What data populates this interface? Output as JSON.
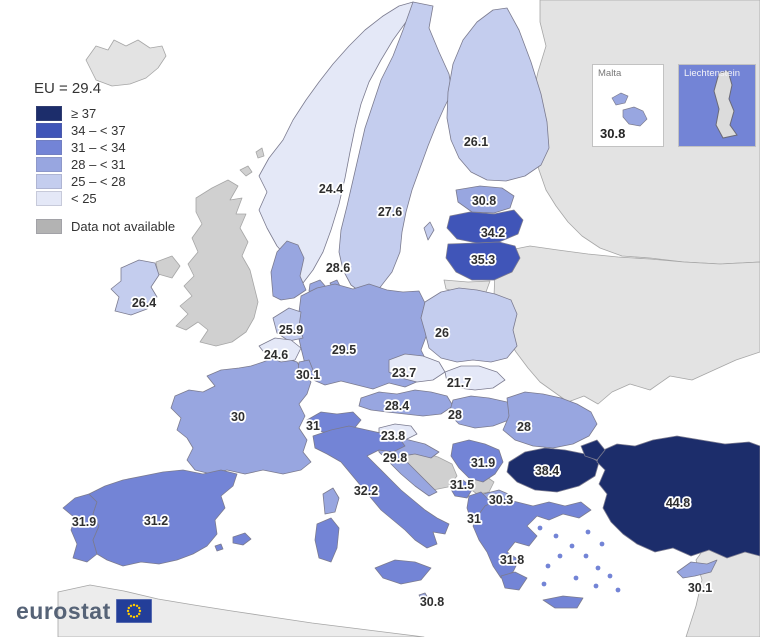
{
  "title": "EU = 29.4",
  "legend": {
    "classes": [
      {
        "id": "c0",
        "label": "≥ 37",
        "color": "#1c2d6b"
      },
      {
        "id": "c1",
        "label": "34 – < 37",
        "color": "#4055b8"
      },
      {
        "id": "c2",
        "label": "31 – < 34",
        "color": "#7384d6"
      },
      {
        "id": "c3",
        "label": "28 – < 31",
        "color": "#98a6e0"
      },
      {
        "id": "c4",
        "label": "25 – < 28",
        "color": "#c4cdee"
      },
      {
        "id": "c5",
        "label": "< 25",
        "color": "#e4e8f7"
      }
    ],
    "no_data": {
      "label": "Data not available",
      "color": "#b3b3b3"
    }
  },
  "map": {
    "extra_colors": {
      "na_light": "#e3e3e3",
      "na_mid": "#d0d0d0",
      "na_faint": "#ececec"
    },
    "countries": [
      {
        "id": "russia",
        "name": "Russia",
        "value": null,
        "cls": "na_light",
        "shape": "russia"
      },
      {
        "id": "east-block",
        "name": "Belarus / Ukraine / Moldova",
        "value": null,
        "cls": "na_light",
        "shape": "east_block"
      },
      {
        "id": "north-africa",
        "name": "North Africa coast",
        "value": null,
        "cls": "na_faint",
        "shape": "africa"
      },
      {
        "id": "middle-east",
        "name": "Syria / Middle East",
        "value": null,
        "cls": "na_light",
        "shape": "mideast"
      },
      {
        "id": "iceland",
        "name": "Iceland",
        "value": null,
        "cls": "na_light",
        "shape": "iceland"
      },
      {
        "id": "kaliningrad",
        "name": "Kaliningrad",
        "value": null,
        "cls": "na_light",
        "shape": "kaliningrad"
      },
      {
        "id": "united-kingdom",
        "name": "United Kingdom",
        "value": null,
        "cls": "na_mid",
        "shape": "uk"
      },
      {
        "id": "bosnia",
        "name": "Bosnia and Herzegovina",
        "value": null,
        "cls": "na_mid",
        "shape": "bosnia"
      },
      {
        "id": "kosovo",
        "name": "Kosovo",
        "value": null,
        "cls": "na_mid",
        "shape": "kosovo"
      },
      {
        "id": "norway",
        "name": "Norway",
        "value": "24.4",
        "cls": "c5",
        "shape": "norway",
        "label": [
          331,
          189
        ]
      },
      {
        "id": "sweden",
        "name": "Sweden",
        "value": "27.6",
        "cls": "c4",
        "shape": "sweden",
        "label": [
          390,
          212
        ]
      },
      {
        "id": "gotland",
        "name": "Gotland",
        "value": null,
        "cls": "c4",
        "shape": "gotland"
      },
      {
        "id": "finland",
        "name": "Finland",
        "value": "26.1",
        "cls": "c4",
        "shape": "finland",
        "label": [
          476,
          142
        ]
      },
      {
        "id": "estonia",
        "name": "Estonia",
        "value": "30.8",
        "cls": "c3",
        "shape": "estonia",
        "label": [
          484,
          201
        ]
      },
      {
        "id": "latvia",
        "name": "Latvia",
        "value": "34.2",
        "cls": "c1",
        "shape": "latvia",
        "label": [
          493,
          233
        ]
      },
      {
        "id": "lithuania",
        "name": "Lithuania",
        "value": "35.3",
        "cls": "c1",
        "shape": "lithuania",
        "label": [
          483,
          260
        ]
      },
      {
        "id": "denmark",
        "name": "Denmark",
        "value": "28.6",
        "cls": "c3",
        "shape": "denmark",
        "label": [
          338,
          268
        ]
      },
      {
        "id": "ireland",
        "name": "Ireland",
        "value": "26.4",
        "cls": "c4",
        "shape": "ireland",
        "label": [
          144,
          303
        ]
      },
      {
        "id": "germany",
        "name": "Germany",
        "value": "29.5",
        "cls": "c3",
        "shape": "germany",
        "label": [
          344,
          350
        ]
      },
      {
        "id": "poland",
        "name": "Poland",
        "value": "26",
        "cls": "c4",
        "shape": "poland",
        "label": [
          442,
          333
        ]
      },
      {
        "id": "czechia",
        "name": "Czechia",
        "value": "23.7",
        "cls": "c5",
        "shape": "czechia",
        "label": [
          404,
          373
        ]
      },
      {
        "id": "slovakia",
        "name": "Slovakia",
        "value": "21.7",
        "cls": "c5",
        "shape": "slovakia",
        "label": [
          459,
          383
        ]
      },
      {
        "id": "france",
        "name": "France",
        "value": "30",
        "cls": "c3",
        "shape": "france",
        "label": [
          238,
          417
        ]
      },
      {
        "id": "netherlands",
        "name": "Netherlands",
        "value": "25.9",
        "cls": "c4",
        "shape": "netherlands",
        "label": [
          291,
          330
        ]
      },
      {
        "id": "belgium",
        "name": "Belgium",
        "value": "24.6",
        "cls": "c5",
        "shape": "belgium",
        "label": [
          276,
          355
        ]
      },
      {
        "id": "luxembourg",
        "name": "Luxembourg",
        "value": "30.1",
        "cls": "c3",
        "shape": "luxembourg",
        "label": [
          308,
          375
        ]
      },
      {
        "id": "switzerland",
        "name": "Switzerland",
        "value": "31",
        "cls": "c2",
        "shape": "switzerland",
        "label": [
          313,
          426
        ]
      },
      {
        "id": "austria",
        "name": "Austria",
        "value": "28.4",
        "cls": "c3",
        "shape": "austria",
        "label": [
          397,
          406
        ]
      },
      {
        "id": "hungary",
        "name": "Hungary",
        "value": "28",
        "cls": "c3",
        "shape": "hungary",
        "label": [
          455,
          415
        ]
      },
      {
        "id": "slovenia",
        "name": "Slovenia",
        "value": "23.8",
        "cls": "c5",
        "shape": "slovenia",
        "label": [
          393,
          436
        ]
      },
      {
        "id": "croatia",
        "name": "Croatia",
        "value": "29.8",
        "cls": "c3",
        "shape": "croatia",
        "label": [
          395,
          458
        ]
      },
      {
        "id": "serbia",
        "name": "Serbia",
        "value": "31.9",
        "cls": "c2",
        "shape": "serbia",
        "label": [
          483,
          463
        ]
      },
      {
        "id": "montenegro",
        "name": "Montenegro",
        "value": "31.5",
        "cls": "c2",
        "shape": "montenegro",
        "label": [
          462,
          485
        ]
      },
      {
        "id": "north-macedonia",
        "name": "North Macedonia",
        "value": "30.3",
        "cls": "c3",
        "shape": "north_macedonia",
        "label": [
          501,
          500
        ]
      },
      {
        "id": "albania",
        "name": "Albania",
        "value": "31",
        "cls": "c2",
        "shape": "albania",
        "label": [
          474,
          519
        ]
      },
      {
        "id": "romania",
        "name": "Romania",
        "value": "28",
        "cls": "c3",
        "shape": "romania",
        "label": [
          524,
          427
        ]
      },
      {
        "id": "bulgaria",
        "name": "Bulgaria",
        "value": "38.4",
        "cls": "c0",
        "shape": "bulgaria",
        "label": [
          547,
          471
        ]
      },
      {
        "id": "greece",
        "name": "Greece",
        "value": "31.8",
        "cls": "c2",
        "shape": "greece",
        "label": [
          512,
          560
        ]
      },
      {
        "id": "turkey",
        "name": "Turkey",
        "value": "44.8",
        "cls": "c0",
        "shape": "turkey",
        "label": [
          678,
          503
        ]
      },
      {
        "id": "cyprus",
        "name": "Cyprus",
        "value": "30.1",
        "cls": "c3",
        "shape": "cyprus",
        "label": [
          700,
          588
        ]
      },
      {
        "id": "italy",
        "name": "Italy",
        "value": "32.2",
        "cls": "c2",
        "shape": "italy",
        "label": [
          366,
          491
        ]
      },
      {
        "id": "corsica",
        "name": "Corsica (France)",
        "value": null,
        "cls": "c3",
        "shape": "corsica"
      },
      {
        "id": "malta-main",
        "name": "Malta",
        "value": "30.8",
        "cls": "c3",
        "shape": "malta_dot",
        "label": [
          432,
          602
        ]
      },
      {
        "id": "portugal",
        "name": "Portugal",
        "value": "31.9",
        "cls": "c2",
        "shape": "portugal",
        "label": [
          84,
          522
        ]
      },
      {
        "id": "spain",
        "name": "Spain",
        "value": "31.2",
        "cls": "c2",
        "shape": "spain",
        "label": [
          156,
          521
        ]
      }
    ]
  },
  "insets": {
    "malta": {
      "title": "Malta",
      "value": "30.8"
    },
    "liechtenstein": {
      "title": "Liechtenstein"
    }
  },
  "logo": {
    "text": "eurostat"
  }
}
